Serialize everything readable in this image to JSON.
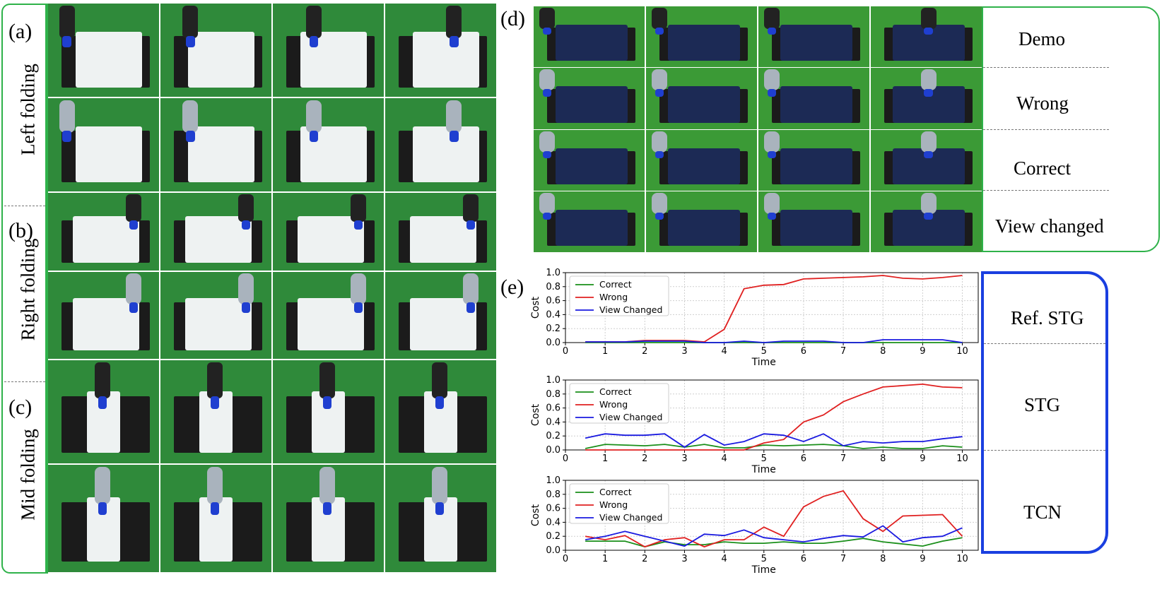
{
  "panels": {
    "a": "(a)",
    "b": "(b)",
    "c": "(c)",
    "d": "(d)",
    "e": "(e)"
  },
  "left_labels": [
    "Left folding",
    "Right folding",
    "Mid folding"
  ],
  "d_labels": [
    "Demo",
    "Wrong",
    "Correct",
    "View changed"
  ],
  "e_labels": [
    "Ref. STG",
    "STG",
    "TCN"
  ],
  "colors": {
    "green_frame": "#2fb24a",
    "blue_frame": "#1a3fe0",
    "correct": "#1a8f1a",
    "wrong": "#e02020",
    "view_changed": "#1a1ae0"
  },
  "chart_data": [
    {
      "type": "line",
      "xlabel": "Time",
      "ylabel": "Cost",
      "xlim": [
        0,
        10.4
      ],
      "ylim": [
        0,
        1.0
      ],
      "xticks": [
        "0",
        "1",
        "2",
        "3",
        "4",
        "5",
        "6",
        "7",
        "8",
        "9",
        "10"
      ],
      "yticks": [
        "0.0",
        "0.2",
        "0.4",
        "0.6",
        "0.8",
        "1.0"
      ],
      "grid": true,
      "legend": "top-left",
      "x": [
        0.5,
        1,
        1.5,
        2,
        2.5,
        3,
        3.5,
        4,
        4.5,
        5,
        5.5,
        6,
        6.5,
        7,
        7.5,
        8,
        8.5,
        9,
        9.5,
        10
      ],
      "series": [
        {
          "name": "Correct",
          "color": "#1a8f1a",
          "values": [
            0,
            0,
            0,
            0,
            0,
            0,
            0,
            0,
            0,
            0,
            0,
            0,
            0,
            0,
            0,
            0,
            0,
            0,
            0,
            0
          ]
        },
        {
          "name": "Wrong",
          "color": "#e02020",
          "values": [
            0.01,
            0.01,
            0.01,
            0.03,
            0.03,
            0.03,
            0.01,
            0.19,
            0.77,
            0.82,
            0.83,
            0.91,
            0.92,
            0.93,
            0.94,
            0.96,
            0.92,
            0.91,
            0.93,
            0.96
          ]
        },
        {
          "name": "View Changed",
          "color": "#1a1ae0",
          "values": [
            0.01,
            0.01,
            0.01,
            0.02,
            0.02,
            0.02,
            0.0,
            0.0,
            0.02,
            0.0,
            0.02,
            0.02,
            0.02,
            0.0,
            0.0,
            0.04,
            0.04,
            0.04,
            0.04,
            0.0
          ]
        }
      ]
    },
    {
      "type": "line",
      "xlabel": "Time",
      "ylabel": "Cost",
      "xlim": [
        0,
        10.4
      ],
      "ylim": [
        0,
        1.0
      ],
      "xticks": [
        "0",
        "1",
        "2",
        "3",
        "4",
        "5",
        "6",
        "7",
        "8",
        "9",
        "10"
      ],
      "yticks": [
        "0.0",
        "0.2",
        "0.4",
        "0.6",
        "0.8",
        "1.0"
      ],
      "grid": true,
      "legend": "top-left",
      "x": [
        0.5,
        1,
        1.5,
        2,
        2.5,
        3,
        3.5,
        4,
        4.5,
        5,
        5.5,
        6,
        6.5,
        7,
        7.5,
        8,
        8.5,
        9,
        9.5,
        10
      ],
      "series": [
        {
          "name": "Correct",
          "color": "#1a8f1a",
          "values": [
            0.02,
            0.08,
            0.07,
            0.06,
            0.08,
            0.04,
            0.08,
            0.03,
            0.03,
            0.07,
            0.06,
            0.07,
            0.08,
            0.06,
            0.02,
            0.04,
            0.02,
            0.02,
            0.06,
            0.04
          ]
        },
        {
          "name": "Wrong",
          "color": "#e02020",
          "values": [
            0.0,
            0.0,
            0.0,
            0.0,
            0.0,
            0.0,
            0.0,
            0.0,
            0.0,
            0.1,
            0.15,
            0.4,
            0.5,
            0.69,
            0.8,
            0.9,
            0.92,
            0.94,
            0.9,
            0.89
          ]
        },
        {
          "name": "View Changed",
          "color": "#1a1ae0",
          "values": [
            0.17,
            0.23,
            0.21,
            0.21,
            0.23,
            0.04,
            0.22,
            0.07,
            0.12,
            0.23,
            0.21,
            0.12,
            0.23,
            0.06,
            0.12,
            0.1,
            0.12,
            0.12,
            0.16,
            0.19
          ]
        }
      ]
    },
    {
      "type": "line",
      "xlabel": "Time",
      "ylabel": "Cost",
      "xlim": [
        0,
        10.4
      ],
      "ylim": [
        0,
        1.0
      ],
      "xticks": [
        "0",
        "1",
        "2",
        "3",
        "4",
        "5",
        "6",
        "7",
        "8",
        "9",
        "10"
      ],
      "yticks": [
        "0.0",
        "0.2",
        "0.4",
        "0.6",
        "0.8",
        "1.0"
      ],
      "grid": true,
      "legend": "top-left",
      "x": [
        0.5,
        1,
        1.5,
        2,
        2.5,
        3,
        3.5,
        4,
        4.5,
        5,
        5.5,
        6,
        6.5,
        7,
        7.5,
        8,
        8.5,
        9,
        9.5,
        10
      ],
      "series": [
        {
          "name": "Correct",
          "color": "#1a8f1a",
          "values": [
            0.13,
            0.13,
            0.13,
            0.05,
            0.12,
            0.08,
            0.08,
            0.12,
            0.1,
            0.1,
            0.12,
            0.1,
            0.1,
            0.13,
            0.17,
            0.12,
            0.09,
            0.06,
            0.13,
            0.18
          ]
        },
        {
          "name": "Wrong",
          "color": "#e02020",
          "values": [
            0.2,
            0.15,
            0.21,
            0.05,
            0.15,
            0.18,
            0.05,
            0.15,
            0.15,
            0.33,
            0.2,
            0.62,
            0.77,
            0.85,
            0.45,
            0.27,
            0.49,
            0.5,
            0.51,
            0.2
          ]
        },
        {
          "name": "View Changed",
          "color": "#1a1ae0",
          "values": [
            0.15,
            0.2,
            0.27,
            0.2,
            0.13,
            0.06,
            0.23,
            0.21,
            0.29,
            0.18,
            0.15,
            0.12,
            0.17,
            0.21,
            0.19,
            0.35,
            0.12,
            0.18,
            0.2,
            0.32
          ]
        }
      ]
    }
  ]
}
